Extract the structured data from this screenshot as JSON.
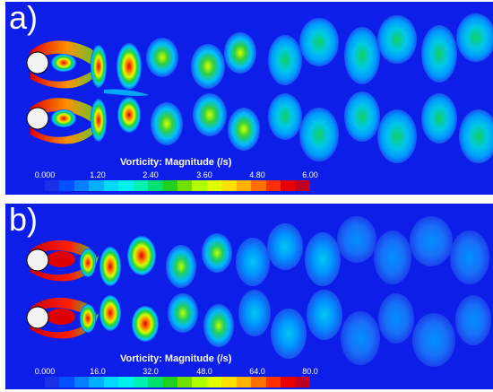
{
  "panels": [
    {
      "id": "a",
      "label": "a)",
      "legend": {
        "title": "Vorticity: Magnitude (/s)",
        "ticks": [
          "0.000",
          "1.20",
          "2.40",
          "3.60",
          "4.80",
          "6.00"
        ]
      }
    },
    {
      "id": "b",
      "label": "b)",
      "legend": {
        "title": "Vorticity: Magnitude (/s)",
        "ticks": [
          "0.000",
          "16.0",
          "32.0",
          "48.0",
          "64.0",
          "80.0"
        ]
      }
    }
  ],
  "colors": {
    "background": "#0c1ee8",
    "cylinder": "#f2f2f2",
    "colormap": [
      "#1a2fe6",
      "#0050ff",
      "#0080ff",
      "#00b0ff",
      "#00d8ff",
      "#00f0f0",
      "#00f0b0",
      "#00e070",
      "#20d020",
      "#70e000",
      "#b0ff00",
      "#e0ff00",
      "#ffe000",
      "#ffb000",
      "#ff7000",
      "#ff3000",
      "#e80000",
      "#c00020"
    ]
  }
}
